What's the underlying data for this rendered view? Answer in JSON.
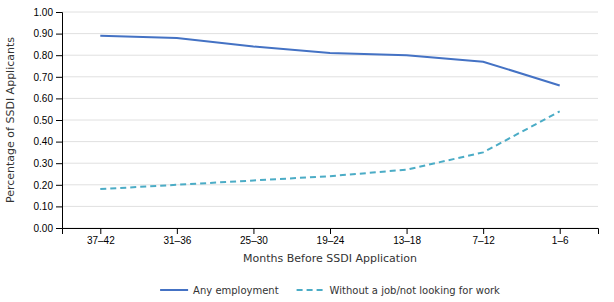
{
  "chart_data": {
    "type": "line",
    "categories": [
      "37–42",
      "31–36",
      "25–30",
      "19–24",
      "13–18",
      "7–12",
      "1–6"
    ],
    "series": [
      {
        "name": "Any employment",
        "color": "#4472c4",
        "line_style": "solid",
        "values": [
          0.89,
          0.88,
          0.84,
          0.81,
          0.8,
          0.77,
          0.66
        ]
      },
      {
        "name": "Without a job/not looking for work",
        "color": "#4bacc6",
        "line_style": "dashed",
        "values": [
          0.18,
          0.2,
          0.22,
          0.24,
          0.27,
          0.35,
          0.54
        ]
      }
    ],
    "x_label": "Months Before SSDI Application",
    "y_label": "Percentage of SSDI Applicants",
    "ylim": [
      0.0,
      1.0
    ],
    "yticks": [
      {
        "value": 0.0,
        "label": "0.00"
      },
      {
        "value": 0.1,
        "label": "0.10"
      },
      {
        "value": 0.2,
        "label": "0.20"
      },
      {
        "value": 0.3,
        "label": "0.30"
      },
      {
        "value": 0.4,
        "label": "0.40"
      },
      {
        "value": 0.5,
        "label": "0.50"
      },
      {
        "value": 0.6,
        "label": "0.60"
      },
      {
        "value": 0.7,
        "label": "0.70"
      },
      {
        "value": 0.8,
        "label": "0.80"
      },
      {
        "value": 0.9,
        "label": "0.90"
      },
      {
        "value": 1.0,
        "label": "1.00"
      }
    ],
    "grid": true,
    "legend": "bottom"
  }
}
